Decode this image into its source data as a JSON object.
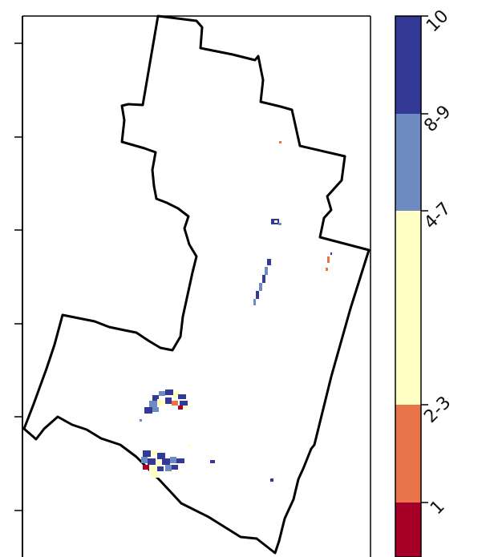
{
  "map": {
    "region_outline_color": "#000000",
    "background_color": "#ffffff"
  },
  "colorbar": {
    "classes": [
      {
        "label": "10",
        "color": "#323996"
      },
      {
        "label": "8-9",
        "color": "#6e8bc1"
      },
      {
        "label": "4-7",
        "color": "#ffffc6"
      },
      {
        "label": "2-3",
        "color": "#e9744a"
      },
      {
        "label": "1",
        "color": "#a70028"
      }
    ]
  }
}
